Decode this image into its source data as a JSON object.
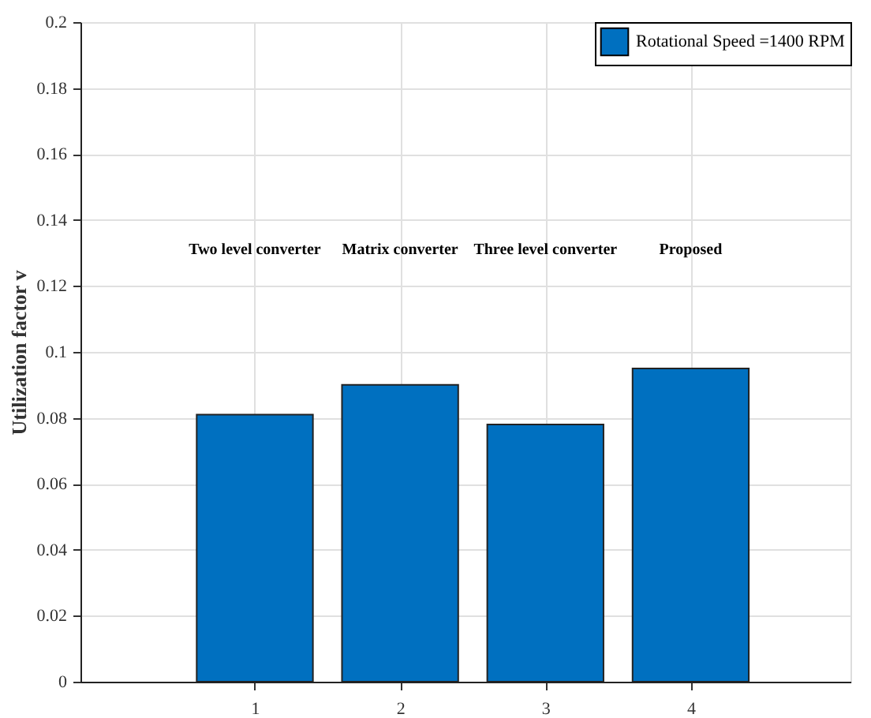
{
  "chart_data": {
    "type": "bar",
    "x": [
      1,
      2,
      3,
      4
    ],
    "series": [
      {
        "name": "Rotational Speed =1400 RPM",
        "color": "#0070c0",
        "values": [
          0.081,
          0.09,
          0.078,
          0.095
        ]
      }
    ],
    "ylabel": "Utilization factor v",
    "xlim": [
      -0.2,
      5.1
    ],
    "xticks": [
      1,
      2,
      3,
      4
    ],
    "ylim": [
      0,
      0.2
    ],
    "yticks": [
      0,
      0.02,
      0.04,
      0.06,
      0.08,
      0.1,
      0.12,
      0.14,
      0.16,
      0.18,
      0.2
    ],
    "grid": true,
    "legend": "top right",
    "annotations": [
      "Two level converter",
      "Matrix converter",
      "Three level converter",
      "Proposed"
    ]
  }
}
